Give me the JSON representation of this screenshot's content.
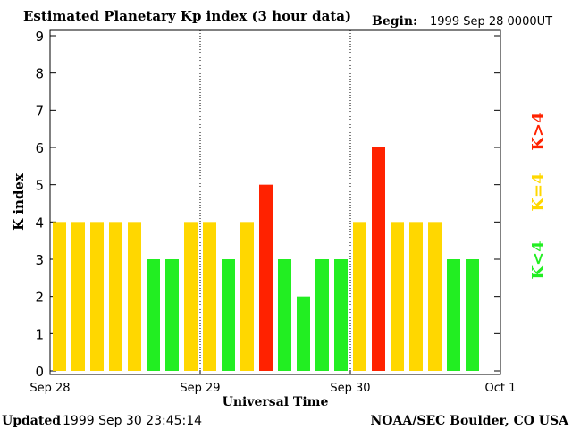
{
  "header": {
    "title": "Estimated Planetary Kp index (3 hour data)",
    "begin_label": "Begin:",
    "begin_value": "1999 Sep 28 0000UT"
  },
  "footer": {
    "updated_label": "Updated",
    "updated_value": "1999 Sep 30 23:45:14",
    "source": "NOAA/SEC Boulder, CO USA"
  },
  "legend": {
    "high": "K>4",
    "equal": "K=4",
    "low": "K<4"
  },
  "colors": {
    "low": "#22ee22",
    "equal": "#ffd700",
    "high": "#ff2200"
  },
  "chart_data": {
    "type": "bar",
    "title": "Estimated Planetary Kp index (3 hour data)",
    "xlabel": "Universal Time",
    "ylabel": "K index",
    "ylim": [
      0,
      9
    ],
    "yticks": [
      "0",
      "1",
      "2",
      "3",
      "4",
      "5",
      "6",
      "7",
      "8",
      "9"
    ],
    "xtick_labels": [
      "Sep 28",
      "Sep 29",
      "Sep 30",
      "Oct 1"
    ],
    "day_dividers": [
      "Sep 29",
      "Sep 30"
    ],
    "values": [
      4,
      4,
      4,
      4,
      4,
      3,
      3,
      4,
      4,
      3,
      4,
      5,
      3,
      2,
      3,
      3,
      4,
      6,
      4,
      4,
      4,
      3,
      3
    ]
  }
}
